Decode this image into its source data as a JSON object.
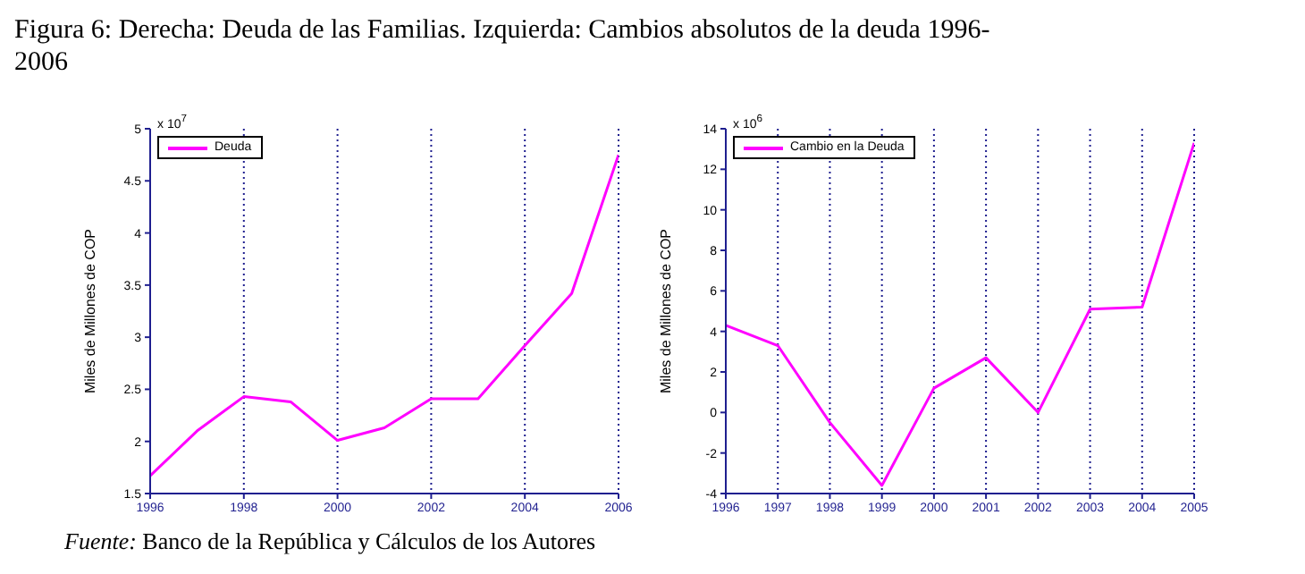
{
  "chart_data": [
    {
      "type": "line",
      "title": "Figura 6: Derecha: Deuda de las Familias. Izquierda: Cambios absolutos de la deuda 1996-2006",
      "ylabel": "Miles de Millones de COP",
      "annotations": [
        "x 10$^{7}$"
      ],
      "x": [
        1996,
        1997,
        1998,
        1999,
        2000,
        2001,
        2002,
        2003,
        2004,
        2005,
        2006
      ],
      "series": [
        {
          "name": "Deuda",
          "color": "#ff00ff",
          "values": [
            1.67,
            2.1,
            2.43,
            2.38,
            2.01,
            2.13,
            2.41,
            2.41,
            2.92,
            3.42,
            4.75
          ]
        }
      ],
      "xlim": [
        1996,
        2006
      ],
      "xticks": [
        1996,
        1998,
        2000,
        2002,
        2004,
        2006
      ],
      "ylim": [
        1.5,
        5
      ],
      "yticks": [
        1.5,
        2,
        2.5,
        3,
        3.5,
        4,
        4.5,
        5
      ],
      "grid": "x",
      "legend": "top left",
      "marker": "none",
      "line_style": "solid"
    },
    {
      "type": "line",
      "ylabel": "Miles de Millones de COP",
      "annotations": [
        "x 10$^{6}$",
        "Fuente: Banco de la República y Cálculos de los Autores"
      ],
      "x": [
        1996,
        1997,
        1998,
        1999,
        2000,
        2001,
        2002,
        2003,
        2004,
        2005
      ],
      "series": [
        {
          "name": "Cambio en la Deuda",
          "color": "#ff00ff",
          "values": [
            4.3,
            3.3,
            -0.5,
            -3.6,
            1.2,
            2.7,
            0.0,
            5.1,
            5.2,
            13.3
          ]
        }
      ],
      "xlim": [
        1996,
        2005
      ],
      "xticks": [
        1996,
        1997,
        1998,
        1999,
        2000,
        2001,
        2002,
        2003,
        2004,
        2005
      ],
      "ylim": [
        -4,
        14
      ],
      "yticks": [
        -4,
        -2,
        0,
        2,
        4,
        6,
        8,
        10,
        12,
        14
      ],
      "grid": "x",
      "legend": "top left",
      "marker": "none",
      "line_style": "solid"
    }
  ]
}
